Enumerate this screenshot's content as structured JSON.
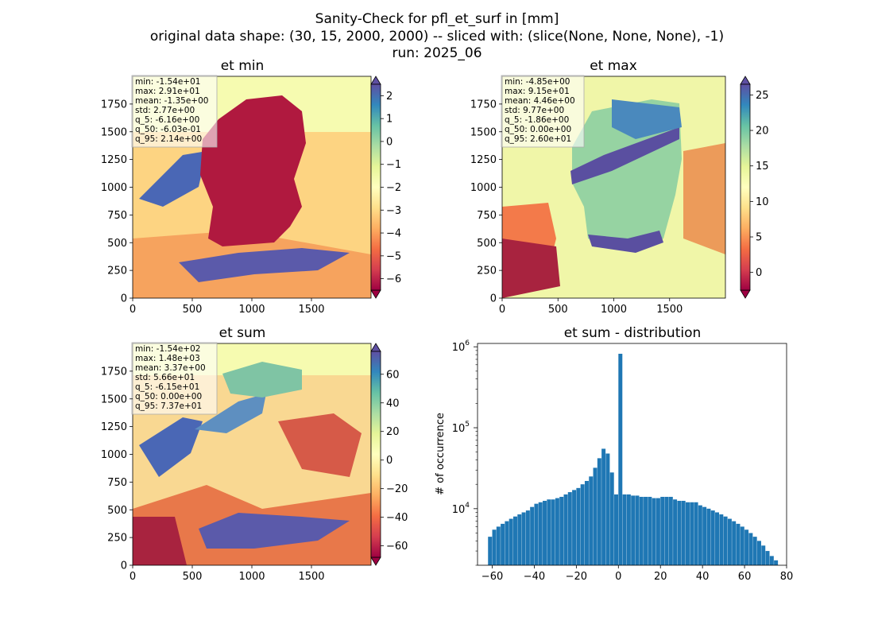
{
  "figure": {
    "title_lines": [
      "Sanity-Check for pfl_et_surf in [mm]",
      "original data shape: (30, 15, 2000, 2000) -- sliced with: (slice(None, None, None), -1)",
      "run: 2025_06"
    ]
  },
  "chart_data": [
    {
      "type": "heatmap",
      "title": "et min",
      "xlim": [
        0,
        2000
      ],
      "ylim": [
        0,
        2000
      ],
      "xticks": [
        0,
        500,
        1000,
        1500
      ],
      "yticks": [
        0,
        250,
        500,
        750,
        1000,
        1250,
        1500,
        1750
      ],
      "colormap": "Spectral",
      "colorbar": {
        "min": -6.5,
        "max": 2.5,
        "ticks": [
          -6,
          -5,
          -4,
          -3,
          -2,
          -1,
          0,
          1,
          2
        ],
        "extend": "both"
      },
      "stats": [
        "min: -1.54e+01",
        "max: 2.91e+01",
        "mean: -1.35e+00",
        "std: 2.77e+00",
        "q_5: -6.16e+00",
        "q_50: -6.03e-01",
        "q_95: 2.14e+00"
      ]
    },
    {
      "type": "heatmap",
      "title": "et max",
      "xlim": [
        0,
        2000
      ],
      "ylim": [
        0,
        2000
      ],
      "xticks": [
        0,
        500,
        1000,
        1500
      ],
      "yticks": [
        0,
        250,
        500,
        750,
        1000,
        1250,
        1500,
        1750
      ],
      "colormap": "Spectral",
      "colorbar": {
        "min": -2.5,
        "max": 26.5,
        "ticks": [
          0,
          5,
          10,
          15,
          20,
          25
        ],
        "extend": "both"
      },
      "stats": [
        "min: -4.85e+00",
        "max: 9.15e+01",
        "mean: 4.46e+00",
        "std: 9.77e+00",
        "q_5: -1.86e+00",
        "q_50: 0.00e+00",
        "q_95: 2.60e+01"
      ]
    },
    {
      "type": "heatmap",
      "title": "et sum",
      "xlim": [
        0,
        2000
      ],
      "ylim": [
        0,
        2000
      ],
      "xticks": [
        0,
        500,
        1000,
        1500
      ],
      "yticks": [
        0,
        250,
        500,
        750,
        1000,
        1250,
        1500,
        1750
      ],
      "colormap": "Spectral",
      "colorbar": {
        "min": -68,
        "max": 76,
        "ticks": [
          -60,
          -40,
          -20,
          0,
          20,
          40,
          60
        ],
        "extend": "both"
      },
      "stats": [
        "min: -1.54e+02",
        "max: 1.48e+03",
        "mean: 3.37e+00",
        "std: 5.66e+01",
        "q_5: -6.15e+01",
        "q_50: 0.00e+00",
        "q_95: 7.37e+01"
      ]
    },
    {
      "type": "bar",
      "title": "et sum - distribution",
      "ylabel": "# of occurrence",
      "yscale": "log",
      "xlim": [
        -67,
        80
      ],
      "ylim": [
        2000,
        1100000
      ],
      "xticks": [
        -60,
        -40,
        -20,
        0,
        20,
        40,
        60,
        80
      ],
      "yticks": [
        10000,
        100000,
        1000000
      ],
      "ytick_labels": [
        "10",
        "10",
        "10"
      ],
      "ytick_exponents": [
        "4",
        "5",
        "6"
      ],
      "color": "#1f77b4",
      "bins": [
        [
          -62,
          4500
        ],
        [
          -60,
          5500
        ],
        [
          -58,
          6000
        ],
        [
          -56,
          6500
        ],
        [
          -54,
          7000
        ],
        [
          -52,
          7500
        ],
        [
          -50,
          8000
        ],
        [
          -48,
          8500
        ],
        [
          -46,
          9000
        ],
        [
          -44,
          9500
        ],
        [
          -42,
          10500
        ],
        [
          -40,
          11500
        ],
        [
          -38,
          12000
        ],
        [
          -36,
          12500
        ],
        [
          -34,
          13000
        ],
        [
          -32,
          13000
        ],
        [
          -30,
          13500
        ],
        [
          -28,
          14000
        ],
        [
          -26,
          15000
        ],
        [
          -24,
          16000
        ],
        [
          -22,
          17000
        ],
        [
          -20,
          18000
        ],
        [
          -18,
          20000
        ],
        [
          -16,
          22000
        ],
        [
          -14,
          25000
        ],
        [
          -12,
          32000
        ],
        [
          -10,
          42000
        ],
        [
          -8,
          55000
        ],
        [
          -6,
          48000
        ],
        [
          -4,
          28000
        ],
        [
          -2,
          15000
        ],
        [
          0,
          820000
        ],
        [
          2,
          15000
        ],
        [
          4,
          15000
        ],
        [
          6,
          14500
        ],
        [
          8,
          14500
        ],
        [
          10,
          14000
        ],
        [
          12,
          14000
        ],
        [
          14,
          14000
        ],
        [
          16,
          13500
        ],
        [
          18,
          13500
        ],
        [
          20,
          14000
        ],
        [
          22,
          14000
        ],
        [
          24,
          14000
        ],
        [
          26,
          13000
        ],
        [
          28,
          12500
        ],
        [
          30,
          12500
        ],
        [
          32,
          12000
        ],
        [
          34,
          12000
        ],
        [
          36,
          12000
        ],
        [
          38,
          11000
        ],
        [
          40,
          10500
        ],
        [
          42,
          10000
        ],
        [
          44,
          9500
        ],
        [
          46,
          9000
        ],
        [
          48,
          8500
        ],
        [
          50,
          8000
        ],
        [
          52,
          7500
        ],
        [
          54,
          7000
        ],
        [
          56,
          6500
        ],
        [
          58,
          6000
        ],
        [
          60,
          5500
        ],
        [
          62,
          5000
        ],
        [
          64,
          4500
        ],
        [
          66,
          4000
        ],
        [
          68,
          3500
        ],
        [
          70,
          3000
        ],
        [
          72,
          2600
        ],
        [
          74,
          2300
        ]
      ]
    }
  ]
}
